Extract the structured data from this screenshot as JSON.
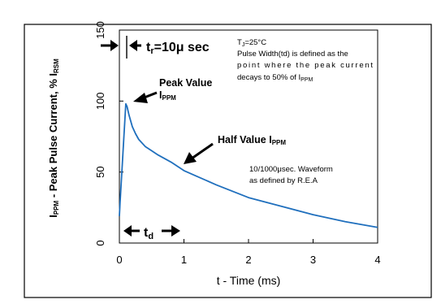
{
  "chart_data": {
    "type": "line",
    "xlabel": "t - Time (ms)",
    "ylabel": {
      "prefix": "I",
      "prefix_sub": "PPM",
      "mid": " - Peak Pulse Current, % I",
      "mid_sub": "RSM"
    },
    "xlim": [
      0,
      4
    ],
    "ylim": [
      0,
      150
    ],
    "x_ticks": [
      {
        "value": 0,
        "label": "0"
      },
      {
        "value": 1,
        "label": "1"
      },
      {
        "value": 2,
        "label": "2"
      },
      {
        "value": 3,
        "label": "3"
      },
      {
        "value": 4,
        "label": "4"
      }
    ],
    "y_ticks": [
      {
        "value": 0,
        "label": "0"
      },
      {
        "value": 50,
        "label": "50"
      },
      {
        "value": 100,
        "label": "100"
      },
      {
        "value": 150,
        "label": "150"
      }
    ],
    "grid": false,
    "series": [
      {
        "color": "#1f6fbd",
        "x": [
          0,
          0.01,
          0.1,
          0.12,
          0.15,
          0.2,
          0.25,
          0.3,
          0.4,
          0.5,
          0.6,
          0.8,
          1.0,
          1.2,
          1.5,
          2.0,
          2.5,
          3.0,
          3.5,
          4.0
        ],
        "y": [
          19,
          28,
          98,
          96,
          90,
          82,
          77,
          73,
          68,
          65,
          62,
          57,
          51,
          47,
          41,
          32,
          26,
          20,
          15,
          11
        ]
      }
    ],
    "annotations": {
      "rise_time": "t",
      "rise_time_sub": "r",
      "rise_time_value": "=10μ sec",
      "tj_prefix": "T",
      "tj_sub": "J",
      "tj_value": "=25°C",
      "pulse_width_lines": [
        "Pulse Width(td) is defined as the",
        "point where the peak current",
        "decays to 50% of I"
      ],
      "pulse_width_sub": "PPM",
      "peak_value_label": "Peak Value",
      "peak_value_sym": "I",
      "peak_value_sub": "PPM",
      "half_value_label": "Half Value I",
      "half_value_sub": "PPM",
      "waveform_lines": [
        "10/1000μsec.  Waveform",
        "as defined by R.E.A"
      ],
      "td_label": "t",
      "td_sub": "d"
    }
  }
}
